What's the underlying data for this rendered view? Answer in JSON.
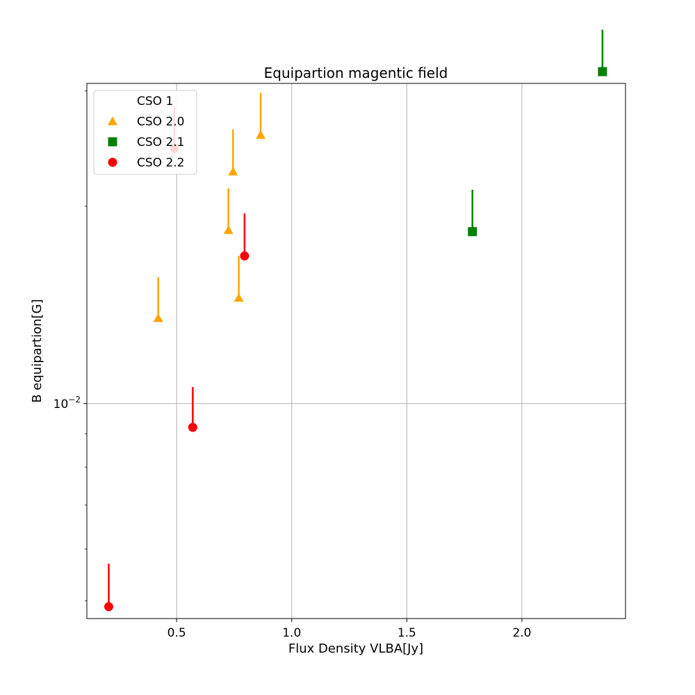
{
  "chart_data": {
    "type": "scatter",
    "title": "Equipartion magentic field",
    "xlabel": "Flux Density VLBA[Jy]",
    "ylabel": "B equipartion[G]",
    "xlim": [
      0.11,
      2.45
    ],
    "ylim": [
      0.0047,
      0.0308
    ],
    "yscale": "log",
    "x_ticks": [
      0.5,
      1.0,
      1.5,
      2.0
    ],
    "x_tick_labels": [
      "0.5",
      "1.0",
      "1.5",
      "2.0"
    ],
    "y_major_ticks": [
      0.01
    ],
    "y_tick_base": "10",
    "y_tick_exponent": "−2",
    "grid": true,
    "legend_position": "top-left",
    "series": [
      {
        "name": "CSO 1",
        "marker": "none",
        "color": "",
        "points": []
      },
      {
        "name": "CSO 2.0",
        "marker": "triangle",
        "color": "#ffa500",
        "points": [
          {
            "x": 0.42,
            "y": 0.0135,
            "upper": 0.0156
          },
          {
            "x": 0.725,
            "y": 0.0184,
            "upper": 0.0213
          },
          {
            "x": 0.745,
            "y": 0.0226,
            "upper": 0.0262
          },
          {
            "x": 0.77,
            "y": 0.0145,
            "upper": 0.0168
          },
          {
            "x": 0.865,
            "y": 0.0257,
            "upper": 0.0298
          }
        ]
      },
      {
        "name": "CSO 2.1",
        "marker": "square",
        "color": "#008000",
        "points": [
          {
            "x": 1.785,
            "y": 0.0183,
            "upper": 0.0212
          },
          {
            "x": 2.35,
            "y": 0.0321,
            "upper": 0.0372
          }
        ]
      },
      {
        "name": "CSO 2.2",
        "marker": "circle",
        "color": "#ff0000",
        "points": [
          {
            "x": 0.205,
            "y": 0.0049,
            "upper": 0.0057
          },
          {
            "x": 0.49,
            "y": 0.0245,
            "upper": 0.0284
          },
          {
            "x": 0.57,
            "y": 0.0092,
            "upper": 0.0106
          },
          {
            "x": 0.795,
            "y": 0.0168,
            "upper": 0.0195
          }
        ]
      }
    ]
  }
}
